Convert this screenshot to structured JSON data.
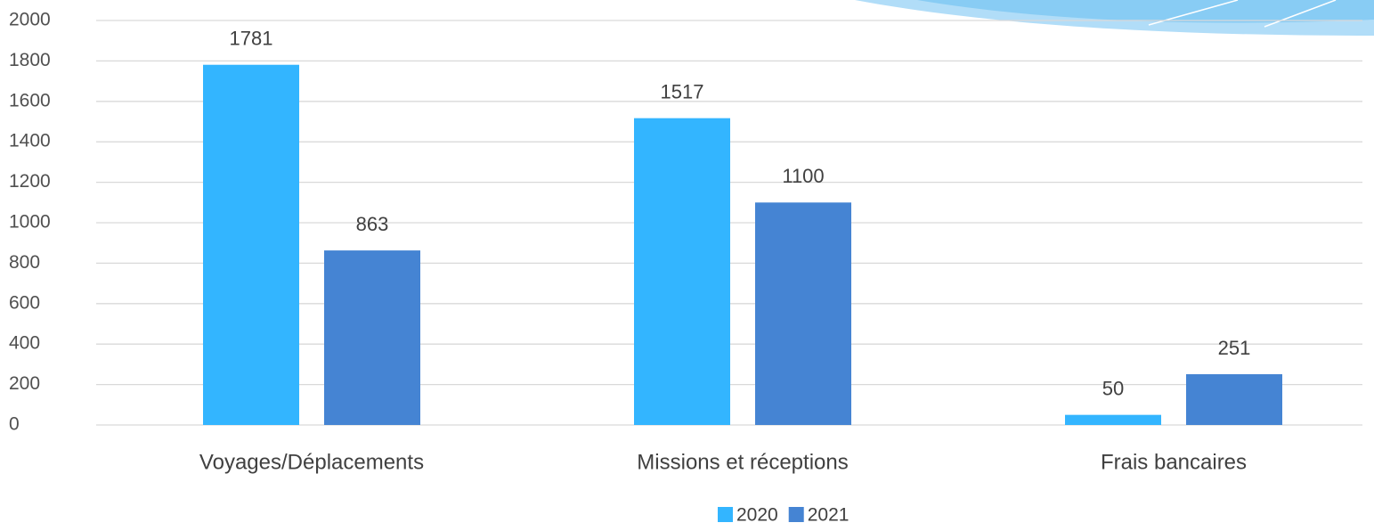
{
  "chart_data": {
    "type": "bar",
    "categories": [
      "Voyages/Déplacements",
      "Missions et réceptions",
      "Frais bancaires"
    ],
    "series": [
      {
        "name": "2020",
        "color": "#33b5ff",
        "values": [
          1781,
          1517,
          50
        ]
      },
      {
        "name": "2021",
        "color": "#4584d3",
        "values": [
          863,
          1100,
          251
        ]
      }
    ],
    "ylim": [
      0,
      2000
    ],
    "yticks": [
      0,
      200,
      400,
      600,
      800,
      1000,
      1200,
      1400,
      1600,
      1800,
      2000
    ],
    "grid": true,
    "legend": "bottom",
    "data_labels": true
  }
}
